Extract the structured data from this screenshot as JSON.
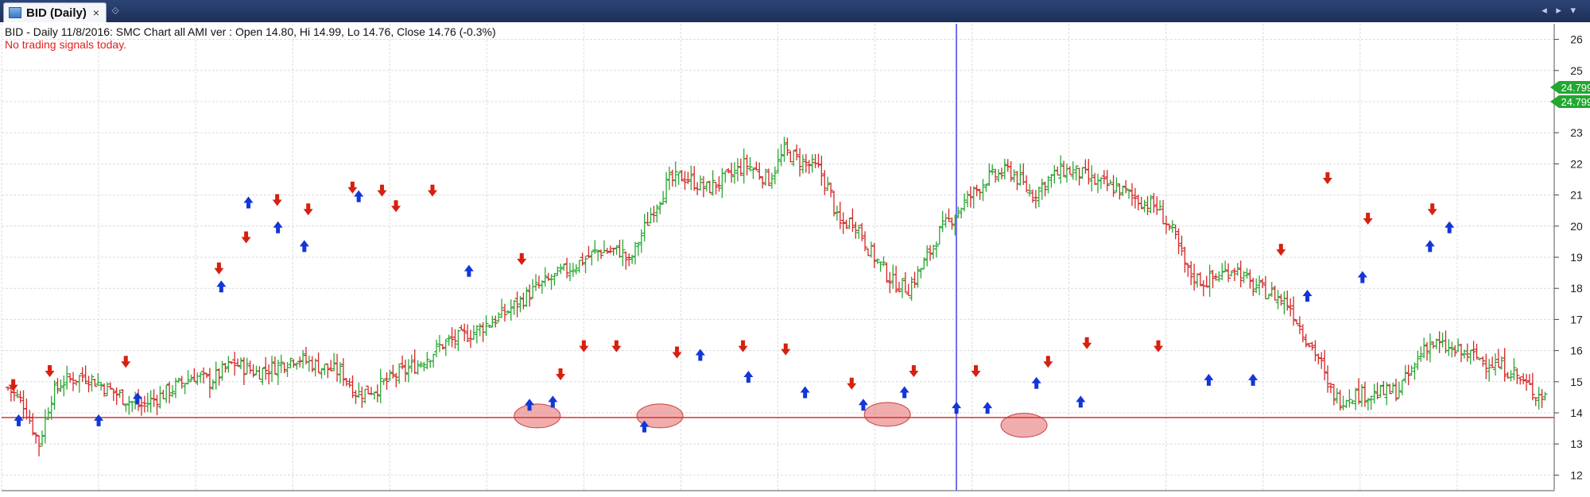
{
  "window": {
    "tab_title": "BID (Daily)",
    "close_glyph": "×",
    "menu_glyph": "⟐",
    "controls_glyph": "◂ ▸ ▾"
  },
  "header": {
    "info_line": "BID - Daily 11/8/2016: SMC Chart all AMI ver : Open 14.80, Hi 14.99, Lo 14.76, Close 14.76 (-0.3%)",
    "signal_line": "No trading signals today."
  },
  "colors": {
    "up_bar": "#27a832",
    "down_bar": "#d62626",
    "buy_arrow": "#1236d8",
    "sell_arrow": "#d62010",
    "support_line": "#e03030",
    "support_ellipse": "#e26a6a",
    "cursor_line": "#7070ee",
    "price_label": "#22a830",
    "grid": "#dcdcdc",
    "signal_text": "#e02020"
  },
  "chart_data": {
    "type": "ohlc",
    "symbol": "BID",
    "timeframe": "Daily",
    "ylim": [
      11.5,
      26.5
    ],
    "y_ticks": [
      12,
      13,
      14,
      15,
      16,
      17,
      18,
      19,
      20,
      21,
      22,
      23,
      24,
      25,
      26
    ],
    "grid": true,
    "support_level": 13.85,
    "last_price_labels": [
      "24.7991",
      "24.7991"
    ],
    "price_path_close": [
      [
        0,
        14.8
      ],
      [
        20,
        14.3
      ],
      [
        40,
        13.0
      ],
      [
        55,
        14.5
      ],
      [
        70,
        15.0
      ],
      [
        100,
        15.2
      ],
      [
        140,
        14.6
      ],
      [
        170,
        14.2
      ],
      [
        200,
        14.6
      ],
      [
        240,
        15.2
      ],
      [
        260,
        15.0
      ],
      [
        290,
        15.6
      ],
      [
        320,
        15.3
      ],
      [
        345,
        15.5
      ],
      [
        370,
        15.8
      ],
      [
        400,
        15.5
      ],
      [
        430,
        15.3
      ],
      [
        450,
        14.6
      ],
      [
        475,
        14.8
      ],
      [
        500,
        15.2
      ],
      [
        530,
        15.6
      ],
      [
        560,
        16.2
      ],
      [
        600,
        16.6
      ],
      [
        640,
        17.2
      ],
      [
        680,
        18.0
      ],
      [
        720,
        18.6
      ],
      [
        760,
        19.2
      ],
      [
        790,
        19.2
      ],
      [
        800,
        18.8
      ],
      [
        830,
        20.5
      ],
      [
        850,
        21.4
      ],
      [
        870,
        21.6
      ],
      [
        900,
        21.2
      ],
      [
        930,
        21.6
      ],
      [
        950,
        22.0
      ],
      [
        980,
        21.5
      ],
      [
        1000,
        22.4
      ],
      [
        1020,
        22.1
      ],
      [
        1045,
        21.8
      ],
      [
        1060,
        21.0
      ],
      [
        1070,
        20.0
      ],
      [
        1090,
        20.2
      ],
      [
        1110,
        19.2
      ],
      [
        1140,
        18.2
      ],
      [
        1160,
        18.0
      ],
      [
        1180,
        18.8
      ],
      [
        1200,
        19.8
      ],
      [
        1230,
        20.7
      ],
      [
        1260,
        21.5
      ],
      [
        1290,
        21.8
      ],
      [
        1320,
        21.0
      ],
      [
        1340,
        21.5
      ],
      [
        1360,
        21.8
      ],
      [
        1380,
        21.7
      ],
      [
        1400,
        21.4
      ],
      [
        1430,
        21.2
      ],
      [
        1460,
        20.8
      ],
      [
        1480,
        20.6
      ],
      [
        1500,
        19.8
      ],
      [
        1520,
        18.5
      ],
      [
        1540,
        18.2
      ],
      [
        1560,
        18.4
      ],
      [
        1580,
        18.7
      ],
      [
        1600,
        18.1
      ],
      [
        1630,
        17.8
      ],
      [
        1650,
        17.5
      ],
      [
        1670,
        16.5
      ],
      [
        1690,
        15.7
      ],
      [
        1700,
        14.8
      ],
      [
        1715,
        14.4
      ],
      [
        1730,
        14.6
      ],
      [
        1760,
        14.6
      ],
      [
        1790,
        14.7
      ],
      [
        1810,
        15.4
      ],
      [
        1825,
        16.2
      ],
      [
        1840,
        16.2
      ],
      [
        1860,
        16.0
      ],
      [
        1890,
        15.8
      ],
      [
        1920,
        15.5
      ],
      [
        1940,
        15.3
      ],
      [
        1950,
        15.0
      ],
      [
        1970,
        14.6
      ],
      [
        1990,
        14.5
      ]
    ],
    "sell_signals": [
      [
        15,
        14.85
      ],
      [
        62,
        15.3
      ],
      [
        160,
        15.6
      ],
      [
        280,
        18.6
      ],
      [
        315,
        19.6
      ],
      [
        355,
        20.8
      ],
      [
        395,
        20.5
      ],
      [
        452,
        21.2
      ],
      [
        490,
        21.1
      ],
      [
        508,
        20.6
      ],
      [
        555,
        21.1
      ],
      [
        670,
        18.9
      ],
      [
        720,
        15.2
      ],
      [
        750,
        16.1
      ],
      [
        792,
        16.1
      ],
      [
        870,
        15.9
      ],
      [
        955,
        16.1
      ],
      [
        1010,
        16.0
      ],
      [
        1095,
        14.9
      ],
      [
        1175,
        15.3
      ],
      [
        1255,
        15.3
      ],
      [
        1348,
        15.6
      ],
      [
        1398,
        16.2
      ],
      [
        1490,
        16.1
      ],
      [
        1648,
        19.2
      ],
      [
        1708,
        21.5
      ],
      [
        1760,
        20.2
      ],
      [
        1843,
        20.5
      ]
    ],
    "buy_signals": [
      [
        22,
        13.8
      ],
      [
        125,
        13.8
      ],
      [
        175,
        14.5
      ],
      [
        283,
        18.1
      ],
      [
        318,
        20.8
      ],
      [
        356,
        20.0
      ],
      [
        390,
        19.4
      ],
      [
        460,
        21.0
      ],
      [
        602,
        18.6
      ],
      [
        680,
        14.3
      ],
      [
        710,
        14.4
      ],
      [
        828,
        13.6
      ],
      [
        900,
        15.9
      ],
      [
        962,
        15.2
      ],
      [
        1035,
        14.7
      ],
      [
        1110,
        14.3
      ],
      [
        1163,
        14.7
      ],
      [
        1230,
        14.2
      ],
      [
        1270,
        14.2
      ],
      [
        1333,
        15.0
      ],
      [
        1390,
        14.4
      ],
      [
        1555,
        15.1
      ],
      [
        1612,
        15.1
      ],
      [
        1682,
        17.8
      ],
      [
        1753,
        18.4
      ],
      [
        1840,
        19.4
      ],
      [
        1865,
        20.0
      ]
    ],
    "support_touch_zones": [
      [
        690,
        13.9
      ],
      [
        848,
        13.9
      ],
      [
        1141,
        13.95
      ],
      [
        1317,
        13.6
      ]
    ]
  }
}
